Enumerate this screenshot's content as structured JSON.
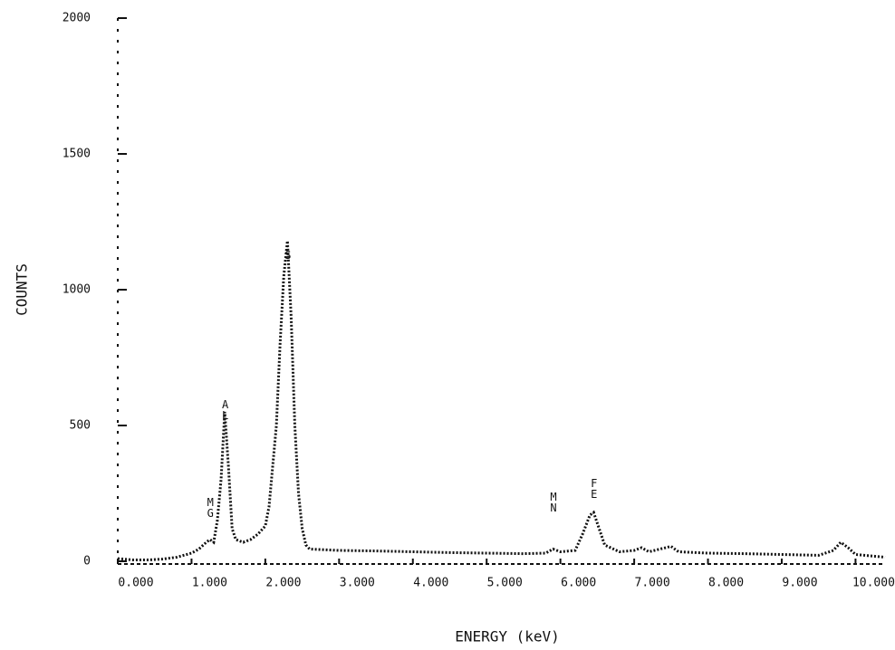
{
  "chart_data": {
    "type": "line",
    "xlabel": "ENERGY (keV)",
    "ylabel": "COUNTS",
    "xlim": [
      0,
      10.4
    ],
    "ylim": [
      0,
      2000
    ],
    "xticks": [
      {
        "value": 0,
        "label": "0.000"
      },
      {
        "value": 1,
        "label": "1.000"
      },
      {
        "value": 2,
        "label": "2.000"
      },
      {
        "value": 3,
        "label": "3.000"
      },
      {
        "value": 4,
        "label": "4.000"
      },
      {
        "value": 5,
        "label": "5.000"
      },
      {
        "value": 6,
        "label": "6.000"
      },
      {
        "value": 7,
        "label": "7.000"
      },
      {
        "value": 8,
        "label": "8.000"
      },
      {
        "value": 9,
        "label": "9.000"
      },
      {
        "value": 10,
        "label": "10.000"
      }
    ],
    "yticks": [
      0,
      500,
      1000,
      1500,
      2000
    ],
    "color": "#111111",
    "x": [
      0.0,
      0.2,
      0.4,
      0.6,
      0.8,
      1.0,
      1.1,
      1.2,
      1.25,
      1.3,
      1.35,
      1.4,
      1.45,
      1.5,
      1.55,
      1.6,
      1.7,
      1.8,
      1.9,
      2.0,
      2.05,
      2.1,
      2.15,
      2.2,
      2.25,
      2.3,
      2.35,
      2.4,
      2.45,
      2.5,
      2.55,
      2.6,
      3.0,
      3.5,
      4.0,
      4.5,
      5.0,
      5.5,
      5.8,
      5.9,
      6.0,
      6.2,
      6.3,
      6.4,
      6.45,
      6.5,
      6.6,
      6.8,
      7.0,
      7.1,
      7.2,
      7.5,
      7.6,
      8.0,
      8.5,
      9.0,
      9.5,
      9.7,
      9.8,
      9.9,
      10.0,
      10.4
    ],
    "values": [
      10,
      5,
      5,
      8,
      15,
      30,
      45,
      70,
      80,
      70,
      150,
      300,
      550,
      350,
      120,
      80,
      70,
      80,
      100,
      130,
      200,
      350,
      500,
      800,
      1050,
      1180,
      900,
      500,
      250,
      120,
      60,
      45,
      40,
      38,
      35,
      32,
      30,
      28,
      30,
      45,
      35,
      40,
      100,
      170,
      180,
      140,
      60,
      35,
      40,
      50,
      35,
      55,
      35,
      30,
      28,
      25,
      22,
      40,
      70,
      50,
      25,
      15
    ],
    "annotations": [
      {
        "x": 1.25,
        "y": 200,
        "text": "MG"
      },
      {
        "x": 1.45,
        "y": 560,
        "text": "AL"
      },
      {
        "x": 2.3,
        "y": 1130,
        "text": "S"
      },
      {
        "x": 5.9,
        "y": 220,
        "text": "MN"
      },
      {
        "x": 6.45,
        "y": 270,
        "text": "FE"
      }
    ]
  }
}
